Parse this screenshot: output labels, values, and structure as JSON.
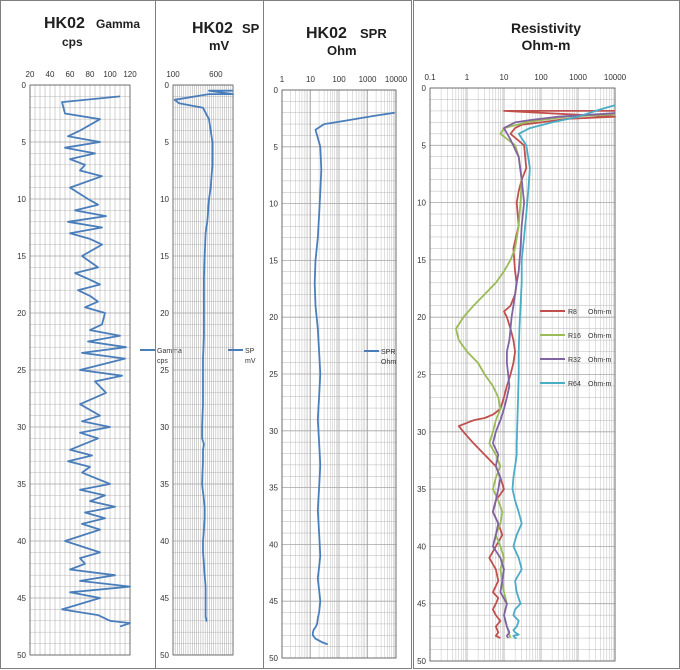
{
  "colors": {
    "blue": "#4a7ebb",
    "red": "#c0504d",
    "green": "#9bbb59",
    "purple": "#8064a2",
    "teal": "#4bacc6",
    "grid": "#a6a6a6",
    "frame": "#7f7f7f"
  },
  "chart_data": [
    {
      "type": "line",
      "orientation": "vertical-depth",
      "title_main": "HK02",
      "title_unit": "Gamma",
      "title_unit2": "cps",
      "xscale": "linear",
      "xlim": [
        20,
        120
      ],
      "xticks": [
        "20",
        "40",
        "60",
        "80",
        "100",
        "120"
      ],
      "ylim": [
        0,
        50
      ],
      "yticks": [
        "0",
        "5",
        "10",
        "15",
        "20",
        "25",
        "30",
        "35",
        "40",
        "45",
        "50"
      ],
      "legend": "right-middle",
      "grid": true,
      "series": [
        {
          "name": "Gamma",
          "unit": "cps",
          "color": "blue",
          "x": [
            110,
            52,
            55,
            90,
            70,
            58,
            90,
            55,
            85,
            60,
            75,
            70,
            92,
            60,
            78,
            88,
            65,
            96,
            58,
            92,
            60,
            80,
            92,
            72,
            88,
            65,
            78,
            90,
            68,
            80,
            88,
            75,
            95,
            92,
            80,
            110,
            78,
            116,
            72,
            115,
            70,
            112,
            85,
            96,
            70,
            90,
            72,
            100,
            70,
            88,
            60,
            82,
            58,
            80,
            72,
            100,
            70,
            95,
            80,
            105,
            75,
            95,
            72,
            90,
            55,
            90,
            70,
            75,
            60,
            105,
            70,
            120,
            60,
            90,
            52,
            88,
            100,
            120,
            110
          ],
          "y": [
            1,
            1.5,
            2.5,
            3,
            4,
            4.5,
            5,
            5.5,
            6,
            6.5,
            7,
            7.5,
            8,
            9,
            10,
            10.5,
            11,
            11.5,
            12,
            12.5,
            13,
            13.5,
            14,
            15,
            16,
            16.5,
            17,
            17.5,
            18,
            18.5,
            19,
            19.5,
            20,
            21,
            21.5,
            22,
            22.5,
            23,
            23.5,
            24,
            25,
            25.5,
            26,
            27,
            28,
            29,
            29.5,
            30,
            30.5,
            31,
            32,
            32.5,
            33,
            33.5,
            34,
            35,
            35.5,
            36,
            36.5,
            37,
            37.5,
            38,
            38.5,
            39,
            40,
            41,
            41.5,
            42,
            42.5,
            43,
            43.5,
            44,
            44.5,
            45,
            46,
            46.5,
            47,
            47.2,
            47.5
          ]
        }
      ]
    },
    {
      "type": "line",
      "orientation": "vertical-depth",
      "title_main": "HK02",
      "title_unit": "SP",
      "title_unit2": "mV",
      "xscale": "linear",
      "xlim": [
        100,
        800
      ],
      "xticks": [
        "100",
        "600"
      ],
      "ylim": [
        0,
        50
      ],
      "yticks": [
        "0",
        "5",
        "10",
        "15",
        "20",
        "25",
        "30",
        "35",
        "40",
        "45",
        "50"
      ],
      "legend": "right-middle",
      "grid": true,
      "series": [
        {
          "name": "SP",
          "unit": "mV",
          "color": "blue",
          "x": [
            800,
            520,
            800,
            520,
            120,
            170,
            450,
            520,
            560,
            560,
            540,
            520,
            500,
            480,
            470,
            460,
            460,
            460,
            460,
            450,
            450,
            450,
            440,
            440,
            460,
            450,
            450,
            440,
            470,
            470,
            460,
            450,
            450,
            460,
            470,
            480,
            480,
            480,
            480,
            480,
            480,
            490,
            490,
            500
          ],
          "y": [
            0.5,
            0.5,
            0.8,
            0.8,
            1.3,
            1.6,
            2,
            3,
            5,
            7,
            9,
            10,
            12,
            13,
            15,
            17,
            19,
            20,
            22,
            24,
            26,
            28,
            30,
            31,
            31.5,
            32,
            33,
            35,
            37,
            38,
            39,
            40,
            41,
            42,
            43,
            44,
            45,
            45.5,
            46,
            46.5,
            46.7,
            46.8,
            47,
            47
          ]
        }
      ]
    },
    {
      "type": "line",
      "orientation": "vertical-depth",
      "title_main": "HK02",
      "title_unit": "SPR",
      "title_unit2": "Ohm",
      "xscale": "log",
      "xlim": [
        1,
        10000
      ],
      "xticks": [
        "1",
        "10",
        "100",
        "1000",
        "10000"
      ],
      "ylim": [
        0,
        50
      ],
      "yticks": [
        "0",
        "5",
        "10",
        "15",
        "20",
        "25",
        "30",
        "35",
        "40",
        "45",
        "50"
      ],
      "legend": "right-middle",
      "grid": true,
      "series": [
        {
          "name": "SPR",
          "unit": "Ohm",
          "color": "blue",
          "x": [
            9000,
            1500,
            100,
            30,
            15,
            22,
            24,
            22,
            20,
            18,
            15,
            14,
            15,
            18,
            20,
            22,
            20,
            18,
            20,
            22,
            20,
            18,
            20,
            22,
            20,
            18,
            20,
            22,
            20,
            18,
            17,
            15,
            13,
            12,
            12,
            15,
            25,
            40
          ],
          "y": [
            2,
            2.3,
            2.8,
            3,
            3.5,
            5,
            7,
            9,
            11,
            13,
            15,
            17,
            19,
            21,
            23,
            25,
            27,
            29,
            31,
            33,
            35,
            37,
            39,
            41,
            42,
            43,
            44,
            45,
            46,
            46.5,
            47,
            47.3,
            47.5,
            47.8,
            48,
            48.3,
            48.6,
            48.8
          ]
        }
      ]
    },
    {
      "type": "line",
      "orientation": "vertical-depth",
      "title_main": "Resistivity",
      "title_unit": "Ohm-m",
      "xscale": "log",
      "xlim": [
        0.1,
        10000
      ],
      "xticks": [
        "0.1",
        "1",
        "10",
        "100",
        "1000",
        "10000"
      ],
      "ylim": [
        0,
        50
      ],
      "yticks": [
        "0",
        "5",
        "10",
        "15",
        "20",
        "25",
        "30",
        "35",
        "40",
        "45",
        "50"
      ],
      "legend": "right-middle",
      "grid": true,
      "series": [
        {
          "name": "R8",
          "unit": "Ohm-m",
          "color": "red",
          "x": [
            10000,
            10,
            10000,
            500,
            100,
            30,
            20,
            15,
            35,
            40,
            30,
            25,
            22,
            25,
            18,
            20,
            22,
            20,
            15,
            10,
            12,
            15,
            18,
            20,
            18,
            15,
            12,
            10,
            8,
            5,
            3,
            1.5,
            0.6,
            0.8,
            1.5,
            3,
            6,
            8,
            10,
            6,
            5,
            7,
            9,
            6,
            4,
            6,
            7,
            5,
            7,
            6,
            5,
            6,
            8,
            6,
            7,
            6,
            8
          ],
          "y": [
            2,
            2,
            2.5,
            2.7,
            3,
            3.2,
            3.5,
            4,
            5,
            7,
            8,
            9,
            10,
            12,
            14,
            16,
            17,
            18,
            19,
            19.5,
            20,
            21,
            22,
            23,
            24,
            25,
            26,
            27,
            28,
            28.5,
            28.8,
            29,
            29.5,
            30,
            31,
            32,
            33,
            34,
            35,
            36,
            37,
            38,
            39,
            40,
            41,
            42,
            43,
            44,
            44.5,
            45,
            45.5,
            46,
            46.5,
            47,
            47.5,
            47.8,
            48
          ]
        },
        {
          "name": "R16",
          "unit": "Ohm-m",
          "color": "green",
          "x": [
            10000,
            500,
            100,
            40,
            10,
            8,
            20,
            25,
            30,
            28,
            25,
            20,
            15,
            10,
            6,
            3,
            1.5,
            0.8,
            0.5,
            0.6,
            1,
            2,
            3,
            5,
            7,
            8,
            6,
            5,
            4,
            6,
            8,
            6,
            5,
            7,
            9,
            8,
            6,
            8,
            10,
            8,
            9,
            10,
            12,
            10,
            12,
            15
          ],
          "y": [
            2.3,
            2.5,
            2.8,
            3,
            3.5,
            4,
            5,
            6,
            8,
            10,
            12,
            14,
            15,
            16,
            17,
            18,
            19,
            20,
            21,
            22,
            23,
            24,
            25,
            26,
            27,
            28,
            29,
            30,
            31,
            32,
            33,
            34,
            35,
            36,
            37,
            38,
            39,
            40,
            41,
            42,
            43,
            44,
            45,
            46,
            47,
            48
          ]
        },
        {
          "name": "R32",
          "unit": "Ohm-m",
          "color": "purple",
          "x": [
            10000,
            300,
            50,
            20,
            10,
            15,
            25,
            30,
            35,
            30,
            28,
            25,
            22,
            20,
            18,
            16,
            15,
            14,
            12,
            12,
            13,
            14,
            12,
            10,
            8,
            6,
            5,
            7,
            6,
            8,
            7,
            6,
            5,
            7,
            6,
            5,
            8,
            10,
            9,
            8,
            12,
            10,
            12,
            14,
            12,
            13
          ],
          "y": [
            2.2,
            2.5,
            2.8,
            3,
            3.5,
            4.5,
            6,
            8,
            10,
            12,
            14,
            16,
            17,
            18,
            19,
            20,
            21,
            22,
            23,
            24,
            25,
            26,
            27,
            28,
            29,
            30,
            31,
            32,
            33,
            34,
            35,
            36,
            37,
            38,
            39,
            40,
            41,
            42,
            43,
            44,
            45,
            46,
            47,
            47.5,
            47.8,
            48
          ]
        },
        {
          "name": "R64",
          "unit": "Ohm-m",
          "color": "teal",
          "x": [
            10000,
            6000,
            3000,
            1000,
            200,
            50,
            25,
            40,
            50,
            45,
            40,
            35,
            30,
            30,
            28,
            26,
            25,
            25,
            24,
            23,
            22,
            22,
            20,
            18,
            17,
            20,
            25,
            30,
            22,
            18,
            25,
            30,
            20,
            22,
            28,
            20,
            18,
            25,
            22,
            18,
            20,
            25,
            18,
            20,
            22
          ],
          "y": [
            1.5,
            1.7,
            2,
            2.5,
            3,
            3.5,
            4,
            5,
            7,
            9,
            11,
            13,
            15,
            17,
            19,
            21,
            23,
            25,
            27,
            29,
            31,
            32,
            33,
            34,
            35,
            36,
            37,
            38,
            39,
            40,
            41,
            42,
            43,
            44,
            45,
            45.5,
            46,
            46.5,
            47,
            47.3,
            47.5,
            47.7,
            47.8,
            48,
            48
          ]
        }
      ]
    }
  ]
}
